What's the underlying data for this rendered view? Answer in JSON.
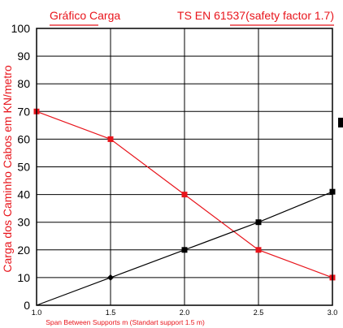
{
  "chart_data": {
    "type": "line",
    "title_left": "Gráfico Carga",
    "title_right": "TS EN 61537(safety factor 1.7)",
    "xlabel": "Span Between Supports m (Standart support 1.5 m)",
    "ylabel": "Carga dos Caminho Cabos em KN/metro",
    "x": [
      1.0,
      1.5,
      2.0,
      2.5,
      3.0
    ],
    "x_tick_labels": [
      "1.0",
      "1.5",
      "2.0",
      "2.5",
      "3.0"
    ],
    "xlim": [
      1.0,
      3.0
    ],
    "ylim": [
      0,
      100
    ],
    "y_ticks": [
      0,
      10,
      20,
      30,
      40,
      50,
      60,
      70,
      80,
      90,
      100
    ],
    "grid": true,
    "series": [
      {
        "color": "#e8141b",
        "values": [
          70,
          60,
          40,
          20,
          10
        ]
      },
      {
        "color": "#000000",
        "values": [
          0,
          10,
          20,
          30,
          41
        ]
      }
    ]
  }
}
